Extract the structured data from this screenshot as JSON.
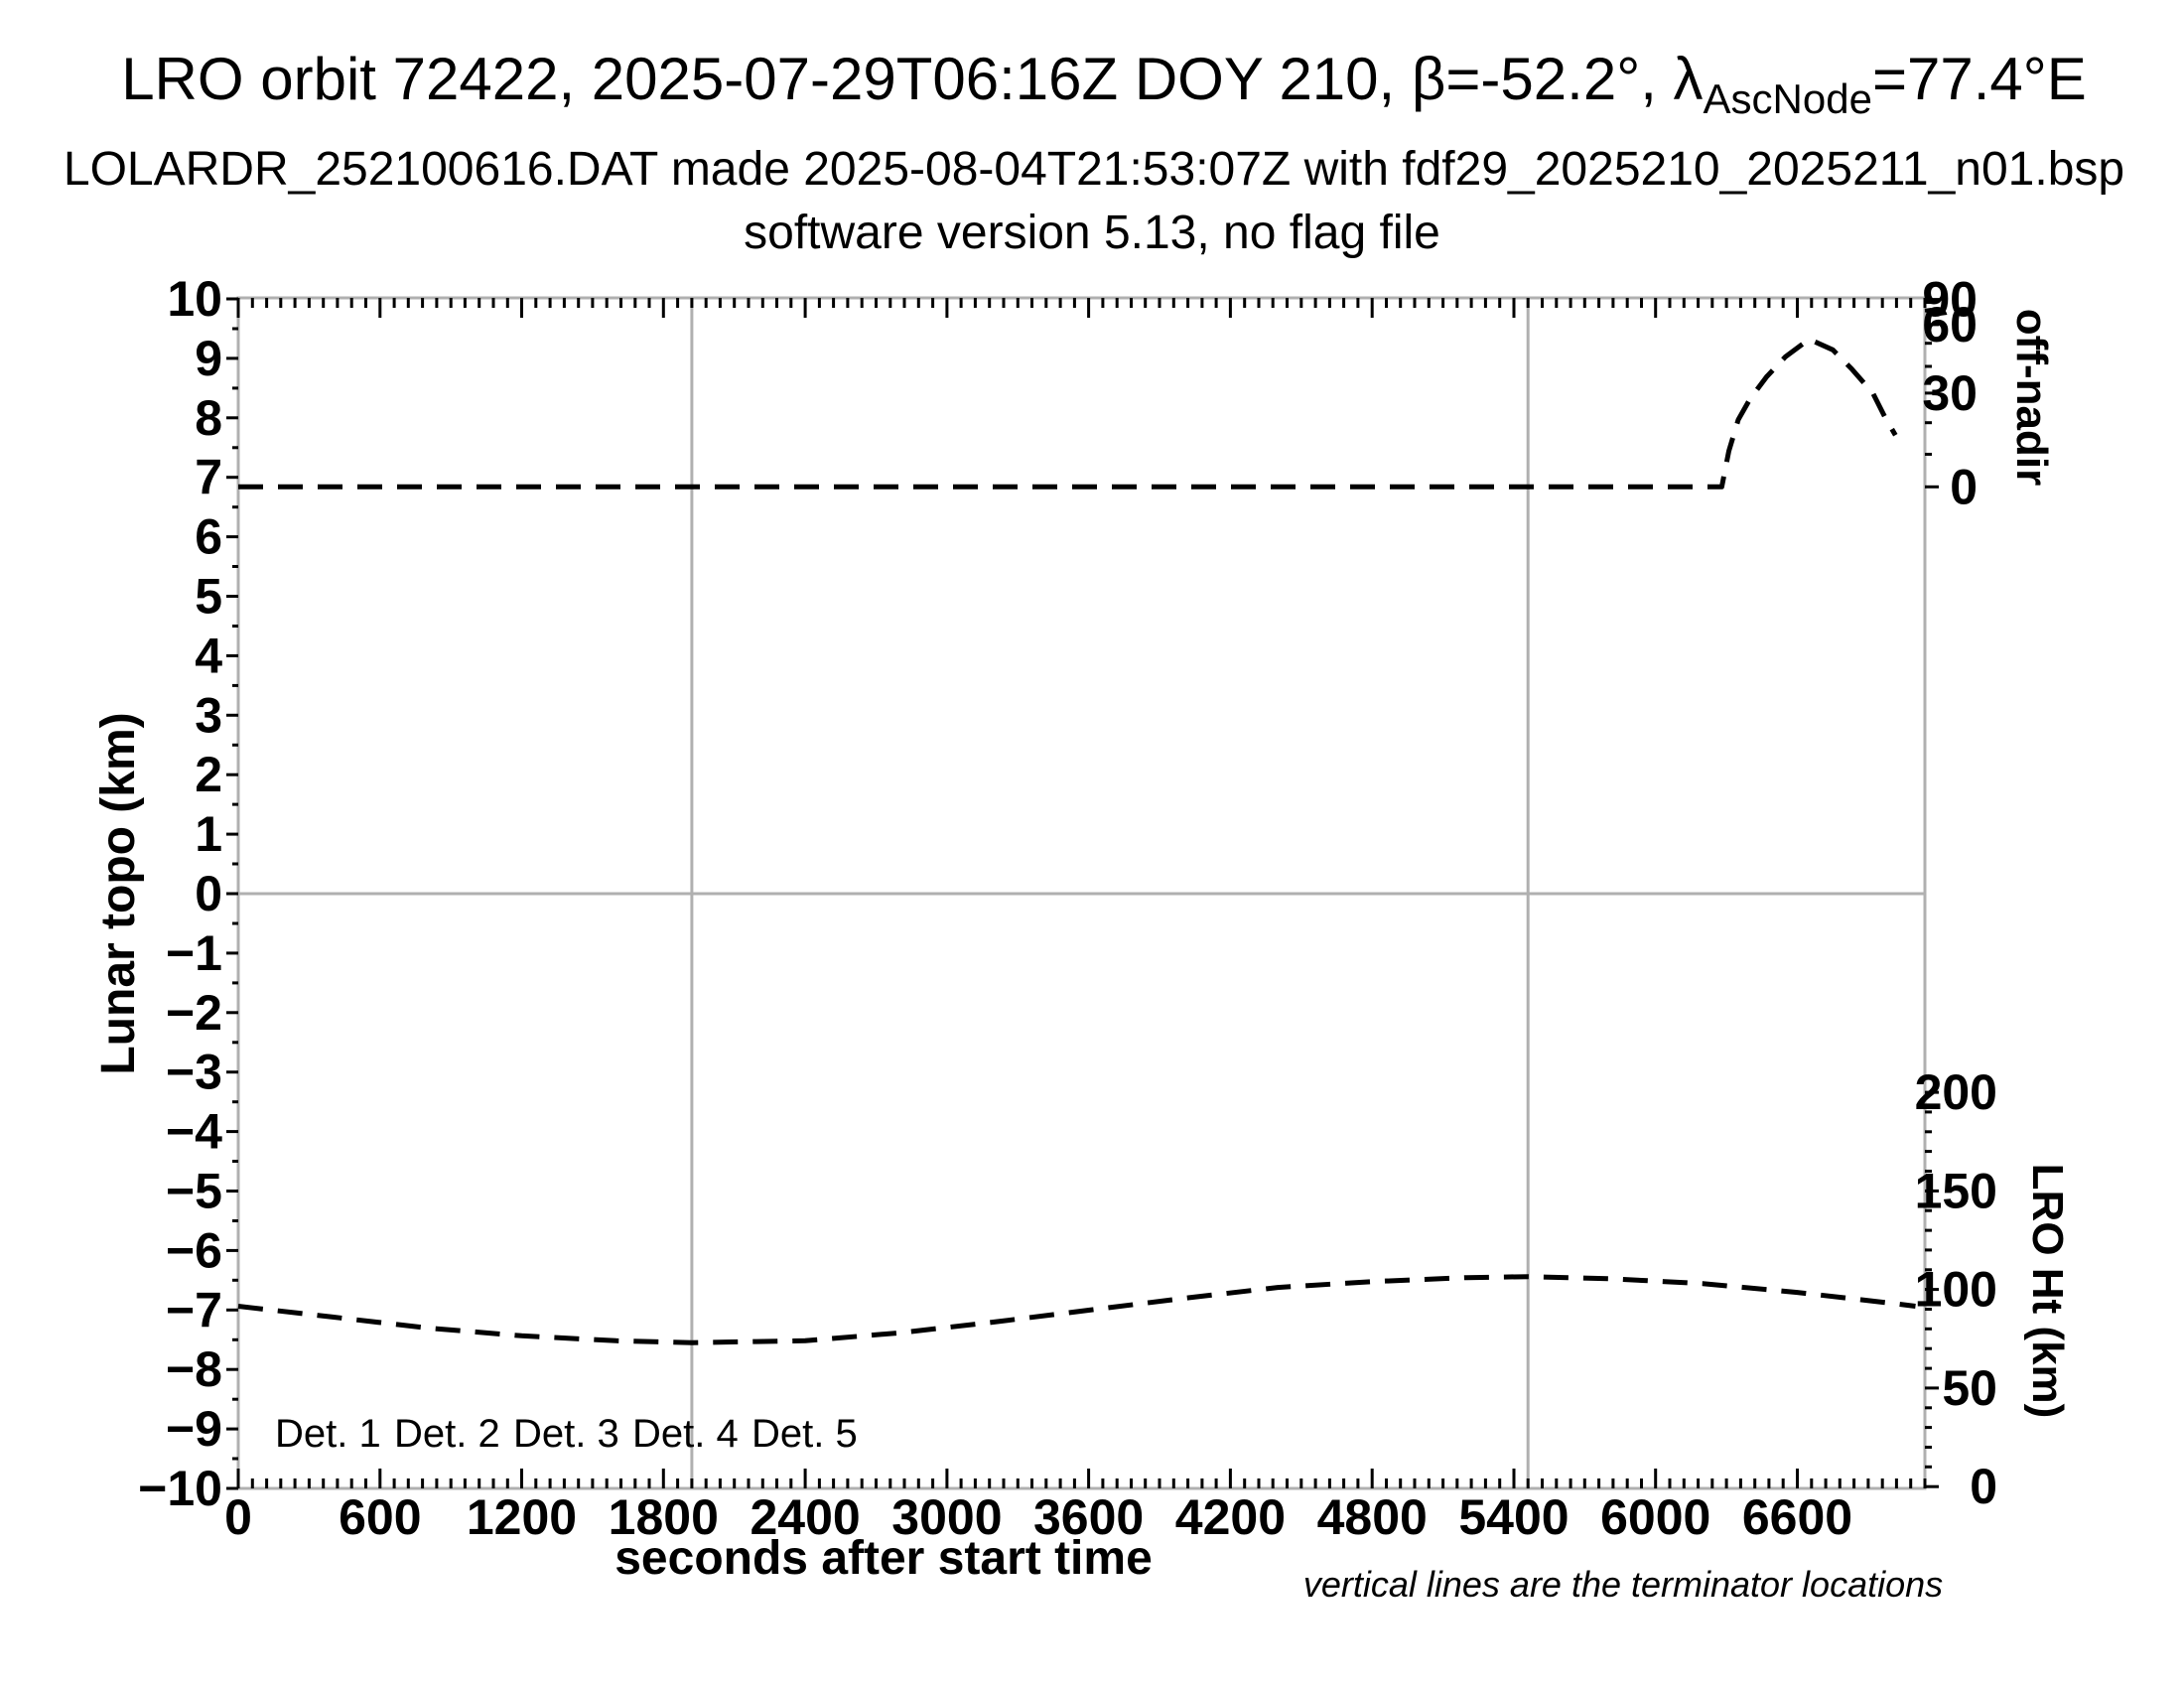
{
  "header": {
    "title_main": "LRO orbit 72422, 2025-07-29T06:16Z DOY 210, β=-52.2°, λ",
    "title_subscript": "AscNode",
    "title_tail": "=77.4°E",
    "subtitle_file": "LOLARDR_252100616.DAT made 2025-08-04T21:53:07Z with fdf29_2025210_2025211_n01.bsp",
    "subtitle_version": "software version 5.13, no flag file"
  },
  "footnote": "vertical lines are the terminator locations",
  "legend": {
    "items": [
      {
        "label": "Det. 1",
        "color": "#000000"
      },
      {
        "label": "Det. 2",
        "color": "#0000ff"
      },
      {
        "label": "Det. 3",
        "color": "#00d000"
      },
      {
        "label": "Det. 4",
        "color": "#ffa500"
      },
      {
        "label": "Det. 5",
        "color": "#ff0000"
      }
    ]
  },
  "colors": {
    "frame": "#b0b0b0",
    "terminator_line": "#b0b0b0",
    "zero_line": "#b0b0b0",
    "curve": "#000000"
  },
  "chart_data": {
    "type": "line",
    "title": "LRO orbit 72422, 2025-07-29T06:16Z DOY 210, beta=-52.2 deg, lambda_AscNode=77.4E",
    "x_axis": {
      "label": "seconds after start time",
      "range": [
        0,
        7140
      ],
      "major_ticks": [
        0,
        600,
        1200,
        1800,
        2400,
        3000,
        3600,
        4200,
        4800,
        5400,
        6000,
        6600
      ],
      "minor_step": 60
    },
    "y_axis_left": {
      "label": "Lunar topo (km)",
      "range": [
        -10,
        10
      ],
      "tick_labels": [
        10,
        9,
        8,
        7,
        6,
        5,
        4,
        3,
        2,
        1,
        0,
        -1,
        -2,
        -3,
        -4,
        -5,
        -6,
        -7,
        -8,
        -9,
        -10
      ],
      "minor_step": 0.5
    },
    "y_axis_right_top": {
      "label": "off-nadir",
      "unit": "degrees",
      "tick_labels": [
        90,
        60,
        30,
        0
      ],
      "minor_ticks_deg": [
        10,
        20,
        40,
        50,
        70,
        80
      ],
      "scale": "sine",
      "mapping_to_left_axis": {
        "offset_km": 6.84,
        "amplitude_km": 3.15
      }
    },
    "y_axis_right_bottom": {
      "label": "LRO Ht (km)",
      "unit": "km",
      "tick_labels": [
        200,
        150,
        100,
        50,
        0
      ],
      "minor_step_km": 10,
      "mapping_to_left_axis": {
        "left_km_at_0": -9.97,
        "left_km_per_km": 0.03315
      }
    },
    "terminator_lines_s": [
      1920,
      5460
    ],
    "zero_line_left_km": 0,
    "series": [
      {
        "name": "off-nadir angle",
        "unit": "deg",
        "axis": "right_top",
        "style": "dashed",
        "color": "#000000",
        "points": [
          [
            0,
            0
          ],
          [
            600,
            0
          ],
          [
            1200,
            0
          ],
          [
            1800,
            0
          ],
          [
            2400,
            0
          ],
          [
            3000,
            0
          ],
          [
            3600,
            0
          ],
          [
            4200,
            0
          ],
          [
            4800,
            0
          ],
          [
            5400,
            0
          ],
          [
            6000,
            0
          ],
          [
            6280,
            0
          ],
          [
            6310,
            11
          ],
          [
            6350,
            21
          ],
          [
            6400,
            28
          ],
          [
            6470,
            36
          ],
          [
            6550,
            44
          ],
          [
            6650,
            52
          ],
          [
            6750,
            47
          ],
          [
            6830,
            39
          ],
          [
            6920,
            30
          ],
          [
            6970,
            22
          ],
          [
            7015,
            16
          ]
        ]
      },
      {
        "name": "LRO height",
        "unit": "km",
        "axis": "right_bottom",
        "style": "dashed",
        "color": "#000000",
        "points": [
          [
            0,
            91.5
          ],
          [
            400,
            86
          ],
          [
            800,
            80.5
          ],
          [
            1200,
            76.5
          ],
          [
            1600,
            74
          ],
          [
            1920,
            73
          ],
          [
            2400,
            74
          ],
          [
            2800,
            78
          ],
          [
            3200,
            83.5
          ],
          [
            3600,
            89.5
          ],
          [
            4000,
            95.5
          ],
          [
            4400,
            101
          ],
          [
            4800,
            104
          ],
          [
            5200,
            106
          ],
          [
            5460,
            106.5
          ],
          [
            5800,
            105.5
          ],
          [
            6200,
            103
          ],
          [
            6600,
            98.5
          ],
          [
            7000,
            93
          ],
          [
            7100,
            91.5
          ]
        ]
      }
    ]
  }
}
